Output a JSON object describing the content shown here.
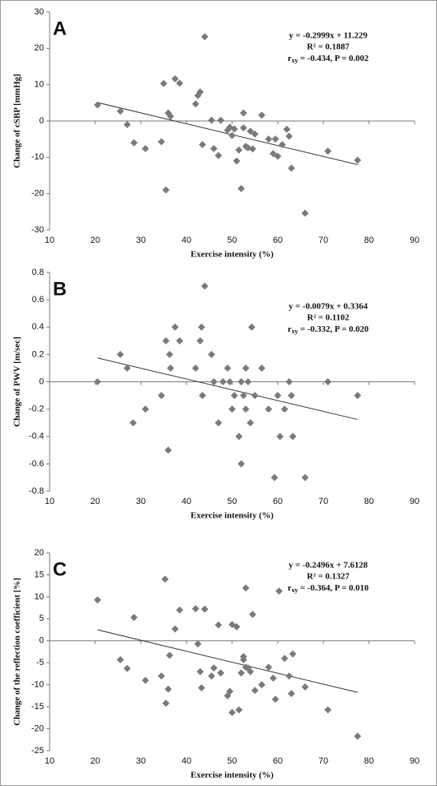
{
  "chart_data": [
    {
      "type": "scatter",
      "panel_label": "A",
      "y_label": "Change of cSBP [mmHg]",
      "x_label": "Exercise intensity (%)",
      "equation": "y = -0.2999x + 11.229",
      "r_squared": "R² = 0.1887",
      "stat_label": "r",
      "stat_sub": "xy",
      "stat_text": " = -0.434, P = 0.002",
      "trend": {
        "slope": -0.2999,
        "intercept": 11.229
      },
      "color": "#7a7a7a",
      "x": [
        20.5,
        25.5,
        27,
        28.5,
        31,
        34.5,
        35,
        35.5,
        36,
        36.5,
        37.5,
        38.5,
        42,
        42.5,
        43,
        43.5,
        44,
        45.5,
        46,
        47,
        47.5,
        49,
        49.5,
        50,
        50.5,
        51,
        51.5,
        52,
        52.5,
        52.5,
        53,
        53.5,
        54,
        54.5,
        55,
        56.5,
        58,
        59,
        59.5,
        60,
        61,
        62,
        62.5,
        63,
        66,
        71,
        77.5
      ],
      "values": [
        4.4,
        2.7,
        -1,
        -6,
        -7.6,
        -5.7,
        10.3,
        -19,
        2.2,
        1.3,
        11.6,
        10.4,
        4.7,
        7,
        8,
        -6.5,
        23.2,
        0.2,
        -7.6,
        -9.5,
        0.2,
        -2.5,
        -1.7,
        -4,
        -2.2,
        -11,
        -8,
        -18.6,
        -1.9,
        2.2,
        -7,
        -7.4,
        -2.8,
        -7.7,
        -3.6,
        1.6,
        -5,
        -9,
        -5,
        -9.7,
        -6.5,
        -2.3,
        -4.2,
        -13,
        -25.4,
        -8.3,
        -10.8
      ],
      "xlim": [
        10,
        90
      ],
      "xticks": [
        10,
        20,
        30,
        40,
        50,
        60,
        70,
        80,
        90
      ],
      "ylim": [
        -30,
        30
      ],
      "yticks": [
        -30,
        -20,
        -10,
        0,
        10,
        20,
        30
      ]
    },
    {
      "type": "scatter",
      "panel_label": "B",
      "y_label": "Change of PWV [m/sec]",
      "x_label": "Exercise intensity (%)",
      "equation": "y = -0.0079x + 0.3364",
      "r_squared": "R² = 0.1102",
      "stat_label": "r",
      "stat_sub": "xy",
      "stat_text": " = -0.332, P = 0.020",
      "trend": {
        "slope": -0.0079,
        "intercept": 0.3364
      },
      "color": "#7a7a7a",
      "x": [
        20.5,
        25.5,
        27,
        28.3,
        31,
        34.5,
        35.5,
        36,
        36.3,
        36.5,
        37.5,
        38.5,
        42,
        43,
        43.3,
        43.5,
        44,
        45.5,
        46,
        47,
        48,
        49,
        49.5,
        50,
        50.5,
        51.5,
        52,
        52,
        52.5,
        53,
        53,
        53.5,
        54,
        54.3,
        55,
        56.5,
        58,
        59.3,
        60,
        60.5,
        61.5,
        62.5,
        63,
        63.3,
        66,
        71,
        77.5
      ],
      "values": [
        0,
        0.2,
        0.1,
        -0.3,
        -0.2,
        -0.1,
        0.3,
        -0.5,
        0.2,
        0.1,
        0.4,
        0.3,
        0.1,
        0.3,
        0.4,
        -0.1,
        0.7,
        0.2,
        0,
        -0.3,
        0,
        0.1,
        0,
        -0.2,
        -0.1,
        -0.4,
        0,
        -0.6,
        -0.1,
        0.1,
        -0.2,
        0,
        -0.3,
        0.4,
        -0.1,
        0.1,
        -0.2,
        -0.7,
        -0.1,
        -0.4,
        -0.2,
        0,
        -0.1,
        -0.4,
        -0.7,
        0,
        -0.1
      ],
      "xlim": [
        10,
        90
      ],
      "xticks": [
        10,
        20,
        30,
        40,
        50,
        60,
        70,
        80,
        90
      ],
      "ylim": [
        -0.8,
        0.8
      ],
      "yticks": [
        -0.8,
        -0.6,
        -0.4,
        -0.2,
        0,
        0.2,
        0.4,
        0.6,
        0.8
      ]
    },
    {
      "type": "scatter",
      "panel_label": "C",
      "y_label": "Change of the reflection coefficient [%]",
      "x_label": "Exercise intensity (%)",
      "equation": "y = -0.2496x + 7.6128",
      "r_squared": "R² = 0.1327",
      "stat_label": "r",
      "stat_sub": "xy",
      "stat_text": " = -0.364, P = 0.010",
      "trend": {
        "slope": -0.2496,
        "intercept": 7.6128
      },
      "color": "#7a7a7a",
      "x": [
        20.5,
        25.5,
        27,
        28.5,
        31,
        34.5,
        35.3,
        35.5,
        36,
        36.3,
        37.5,
        38.5,
        42,
        42.5,
        43,
        43.3,
        44,
        45.5,
        46,
        47,
        47.5,
        49,
        49.5,
        50,
        50,
        51,
        51.5,
        52,
        52.5,
        52.5,
        53,
        53,
        53.5,
        54,
        54.5,
        55,
        56.5,
        58,
        59,
        59.5,
        60.3,
        61.5,
        62.5,
        63,
        63.3,
        66,
        71,
        77.5
      ],
      "values": [
        9.3,
        -4.3,
        -6.3,
        5.3,
        -9,
        -8,
        14,
        -14.2,
        -11,
        -3.3,
        2.7,
        7,
        7.3,
        -0.7,
        -7,
        -10.7,
        7.2,
        -8,
        -6.2,
        3.6,
        -7.3,
        -12.5,
        -11.5,
        3.7,
        -16.3,
        3.2,
        -15.7,
        -7.3,
        -4.3,
        -3.6,
        12,
        -6,
        -6.2,
        -7,
        6,
        -11.3,
        -10,
        -6,
        -8.5,
        -13.3,
        11.3,
        -4,
        -8,
        -12,
        -3,
        -10.5,
        -15.7,
        -21.7
      ],
      "xlim": [
        10,
        90
      ],
      "xticks": [
        10,
        20,
        30,
        40,
        50,
        60,
        70,
        80,
        90
      ],
      "ylim": [
        -25,
        20
      ],
      "yticks": [
        -25,
        -20,
        -15,
        -10,
        -5,
        0,
        5,
        10,
        15,
        20
      ]
    }
  ]
}
